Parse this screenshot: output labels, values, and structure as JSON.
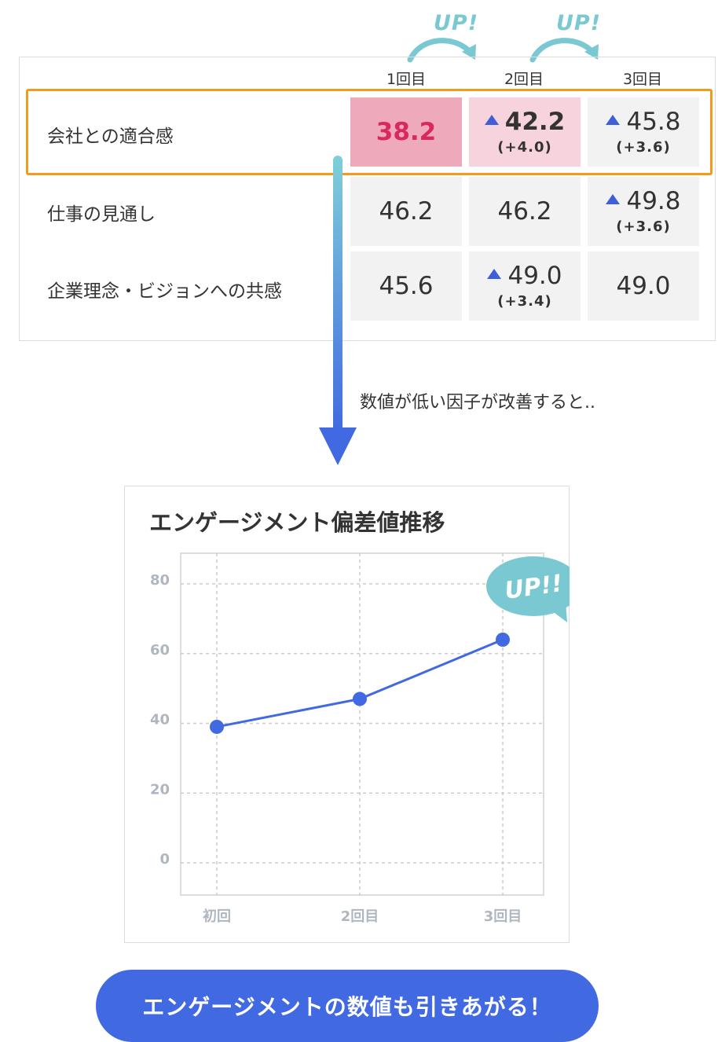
{
  "table": {
    "columns": [
      "1回目",
      "2回目",
      "3回目"
    ],
    "up_label": "UP!",
    "rows": [
      {
        "label": "会社との適合感",
        "cells": [
          {
            "value": "38.2",
            "delta": "",
            "up": false
          },
          {
            "value": "42.2",
            "delta": "(+4.0)",
            "up": true
          },
          {
            "value": "45.8",
            "delta": "(+3.6)",
            "up": true
          }
        ]
      },
      {
        "label": "仕事の見通し",
        "cells": [
          {
            "value": "46.2",
            "delta": "",
            "up": false
          },
          {
            "value": "46.2",
            "delta": "",
            "up": false
          },
          {
            "value": "49.8",
            "delta": "(+3.6)",
            "up": true
          }
        ]
      },
      {
        "label": "企業理念・ビジョンへの共感",
        "cells": [
          {
            "value": "45.6",
            "delta": "",
            "up": false
          },
          {
            "value": "49.0",
            "delta": "(+3.4)",
            "up": true
          },
          {
            "value": "49.0",
            "delta": "",
            "up": false
          }
        ]
      }
    ]
  },
  "note": "数値が低い因子が改善すると..",
  "chart_data": {
    "type": "line",
    "title": "エンゲージメント偏差値推移",
    "categories": [
      "初回",
      "2回目",
      "3回目"
    ],
    "values": [
      39,
      47,
      64
    ],
    "yticks": [
      "0",
      "20",
      "40",
      "60",
      "80"
    ],
    "ylim": [
      0,
      80
    ],
    "grid": true,
    "callout": "UP!!"
  },
  "cta": "エンゲージメントの数値も引きあがる！",
  "colors": {
    "accent": "#4169e1",
    "highlight_border": "#f09a1e",
    "low_cell": "#eeaabb",
    "low_text": "#d9285e",
    "up_cell": "#f7d4dd",
    "up_label": "#7ac9d2",
    "arrow_top": "#7fd0d8",
    "arrow_bottom": "#4169e1"
  }
}
